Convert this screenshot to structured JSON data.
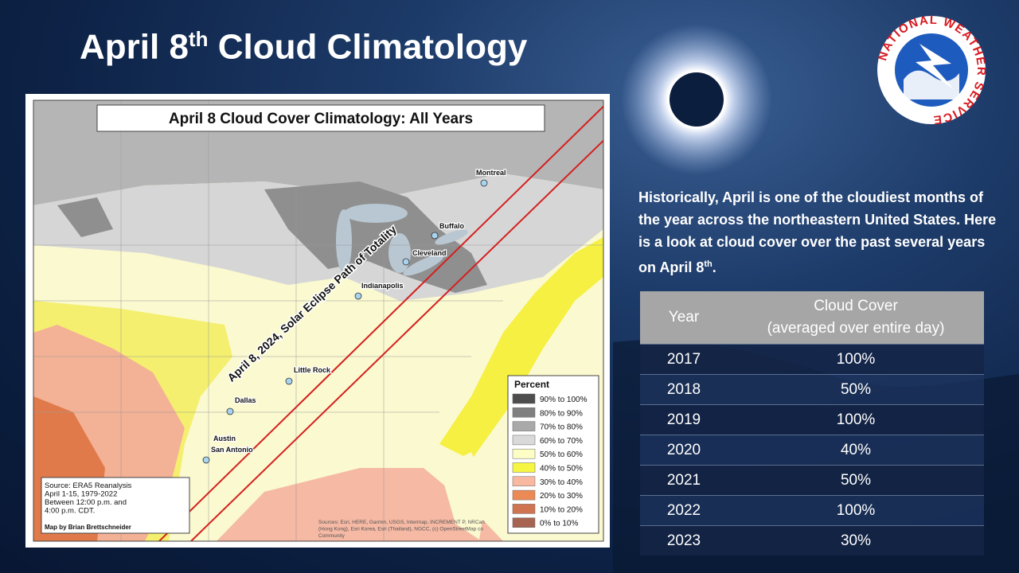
{
  "slide": {
    "title": {
      "text": "April 8",
      "sup": "th",
      "rest": " Cloud Climatology"
    },
    "logo_text": "NATIONAL WEATHER SERVICE",
    "description": {
      "text": "Historically, April is one of the cloudiest months of the year across the northeastern United States. Here is a look at cloud cover over the past several years on April 8",
      "sup": "th",
      "end": "."
    }
  },
  "map": {
    "title": "April 8 Cloud Cover Climatology: All Years",
    "path_label": "April 8, 2024, Solar Eclipse Path of Totality",
    "cities": [
      "Montreal",
      "Buffalo",
      "Cleveland",
      "Indianapolis",
      "Little Rock",
      "Dallas",
      "Austin",
      "San Antonio"
    ],
    "legend": {
      "title": "Percent",
      "items": [
        {
          "label": "90% to 100%",
          "color": "#4d4d4d"
        },
        {
          "label": "80% to 90%",
          "color": "#808080"
        },
        {
          "label": "70% to 80%",
          "color": "#a9a9a9"
        },
        {
          "label": "60% to 70%",
          "color": "#d9d9d9"
        },
        {
          "label": "50% to 60%",
          "color": "#fdfdc6"
        },
        {
          "label": "40% to 50%",
          "color": "#f5f542"
        },
        {
          "label": "30% to 40%",
          "color": "#f8b9a0"
        },
        {
          "label": "20% to 30%",
          "color": "#ec8a55"
        },
        {
          "label": "10% to 20%",
          "color": "#cf7350"
        },
        {
          "label": "0% to 10%",
          "color": "#a66451"
        }
      ]
    },
    "source": [
      "Source: ERA5 Reanalysis",
      "April 1-15, 1979-2022",
      "Between 12:00 p.m. and",
      "4:00 p.m. CDT."
    ],
    "credit": "Map by Brian Brettschneider",
    "attribution": [
      "Sources: Esri, HERE, Garmin, USGS, Intermap, INCREMENT P, NRCan",
      "(Hong Kong), Esri Korea, Esri (Thailand), NGCC, (c) OpenStreetMap co",
      "Community"
    ]
  },
  "table": {
    "columns": [
      "Year",
      "Cloud Cover"
    ],
    "column_note": "(averaged over entire day)",
    "rows": [
      [
        "2017",
        "100%"
      ],
      [
        "2018",
        "50%"
      ],
      [
        "2019",
        "100%"
      ],
      [
        "2020",
        "40%"
      ],
      [
        "2021",
        "50%"
      ],
      [
        "2022",
        "100%"
      ],
      [
        "2023",
        "30%"
      ]
    ]
  }
}
